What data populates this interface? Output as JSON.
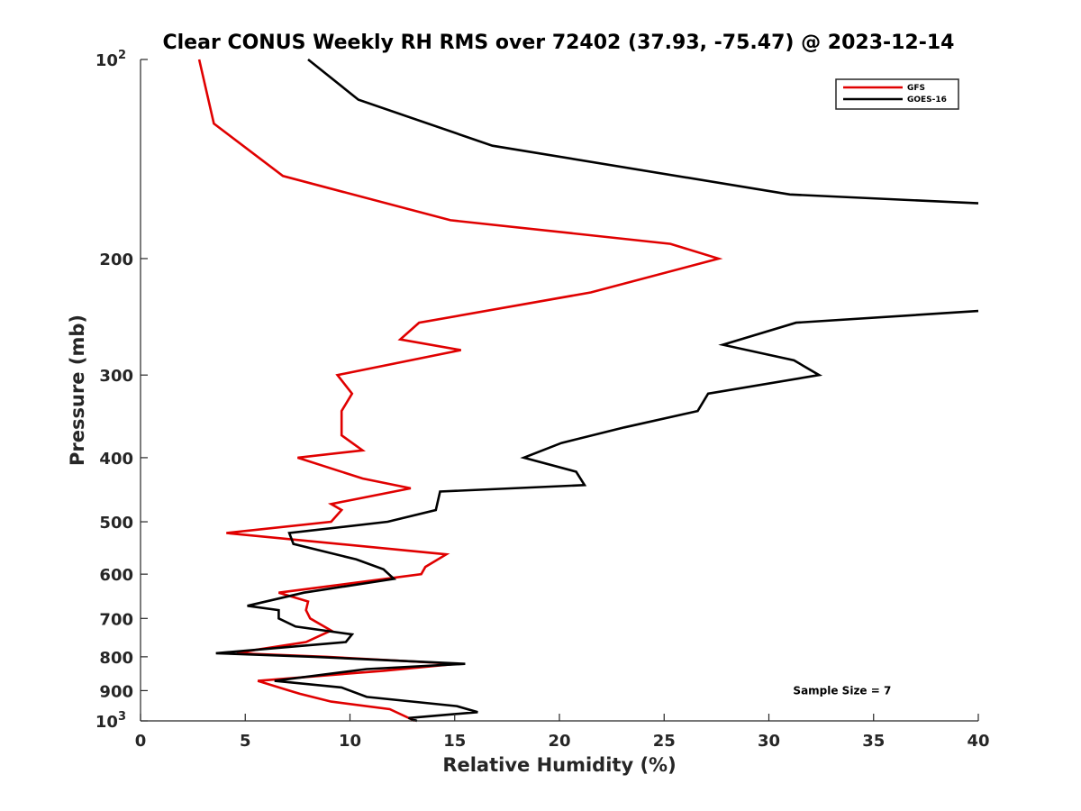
{
  "chart_data": {
    "type": "line",
    "title": "Clear CONUS Weekly RH RMS over 72402 (37.93, -75.47) @ 2023-12-14",
    "xlabel": "Relative Humidity (%)",
    "ylabel": "Pressure (mb)",
    "xlim": [
      0,
      40
    ],
    "ylim": [
      100,
      1000
    ],
    "yscale": "log",
    "yreversed": true,
    "x_ticks": [
      0,
      5,
      10,
      15,
      20,
      25,
      30,
      35,
      40
    ],
    "x_tick_labels": [
      "0",
      "5",
      "10",
      "15",
      "20",
      "25",
      "30",
      "35",
      "40"
    ],
    "y_ticks": [
      100,
      200,
      300,
      400,
      500,
      600,
      700,
      800,
      900,
      1000
    ],
    "y_tick_labels": [
      {
        "base": "10",
        "exp": "2"
      },
      {
        "base": "200",
        "exp": ""
      },
      {
        "base": "300",
        "exp": ""
      },
      {
        "base": "400",
        "exp": ""
      },
      {
        "base": "500",
        "exp": ""
      },
      {
        "base": "600",
        "exp": ""
      },
      {
        "base": "700",
        "exp": ""
      },
      {
        "base": "800",
        "exp": ""
      },
      {
        "base": "900",
        "exp": ""
      },
      {
        "base": "10",
        "exp": "3"
      }
    ],
    "legend_position": "top-right",
    "series": [
      {
        "name": "GFS",
        "color": "#e00000",
        "points": [
          [
            2.8,
            100
          ],
          [
            3.5,
            125
          ],
          [
            6.8,
            150
          ],
          [
            14.8,
            175
          ],
          [
            25.3,
            190
          ],
          [
            27.6,
            200
          ],
          [
            21.5,
            225
          ],
          [
            13.3,
            250
          ],
          [
            12.4,
            265
          ],
          [
            15.3,
            275
          ],
          [
            9.4,
            300
          ],
          [
            10.1,
            320
          ],
          [
            9.6,
            340
          ],
          [
            9.6,
            370
          ],
          [
            10.6,
            390
          ],
          [
            7.5,
            400
          ],
          [
            10.6,
            430
          ],
          [
            12.9,
            445
          ],
          [
            9.1,
            470
          ],
          [
            9.6,
            480
          ],
          [
            9.1,
            500
          ],
          [
            4.1,
            520
          ],
          [
            14.6,
            560
          ],
          [
            13.6,
            585
          ],
          [
            13.4,
            600
          ],
          [
            6.6,
            640
          ],
          [
            8.0,
            660
          ],
          [
            7.9,
            680
          ],
          [
            8.1,
            700
          ],
          [
            9.1,
            730
          ],
          [
            7.9,
            760
          ],
          [
            5.6,
            780
          ],
          [
            4.6,
            790
          ],
          [
            8.9,
            800
          ],
          [
            15.1,
            820
          ],
          [
            11.6,
            840
          ],
          [
            5.6,
            870
          ],
          [
            7.1,
            900
          ],
          [
            7.6,
            910
          ],
          [
            9.1,
            935
          ],
          [
            11.9,
            960
          ],
          [
            13.1,
            1000
          ]
        ]
      },
      {
        "name": "GOES-16",
        "color": "#000000",
        "points": [
          [
            8.0,
            100
          ],
          [
            10.4,
            115
          ],
          [
            16.8,
            135
          ],
          [
            31.0,
            160
          ],
          [
            40.0,
            165
          ],
          [
            null,
            170
          ],
          [
            40.0,
            240
          ],
          [
            31.3,
            250
          ],
          [
            27.8,
            270
          ],
          [
            31.2,
            285
          ],
          [
            32.4,
            300
          ],
          [
            27.1,
            320
          ],
          [
            26.6,
            340
          ],
          [
            23.1,
            360
          ],
          [
            20.1,
            380
          ],
          [
            18.3,
            400
          ],
          [
            20.8,
            420
          ],
          [
            21.2,
            440
          ],
          [
            14.3,
            450
          ],
          [
            14.1,
            480
          ],
          [
            11.8,
            500
          ],
          [
            7.1,
            520
          ],
          [
            7.3,
            540
          ],
          [
            10.3,
            570
          ],
          [
            11.6,
            590
          ],
          [
            12.1,
            610
          ],
          [
            7.8,
            640
          ],
          [
            5.1,
            670
          ],
          [
            6.6,
            680
          ],
          [
            6.6,
            700
          ],
          [
            7.4,
            720
          ],
          [
            10.1,
            740
          ],
          [
            9.8,
            760
          ],
          [
            3.6,
            790
          ],
          [
            8.3,
            800
          ],
          [
            15.5,
            820
          ],
          [
            10.8,
            835
          ],
          [
            6.4,
            870
          ],
          [
            9.6,
            890
          ],
          [
            10.8,
            920
          ],
          [
            15.1,
            950
          ],
          [
            16.1,
            970
          ],
          [
            12.8,
            990
          ],
          [
            13.2,
            1000
          ]
        ]
      }
    ],
    "annotations": [
      {
        "text": "Sample Size = 7",
        "x": 33.5,
        "y": 900
      }
    ]
  }
}
